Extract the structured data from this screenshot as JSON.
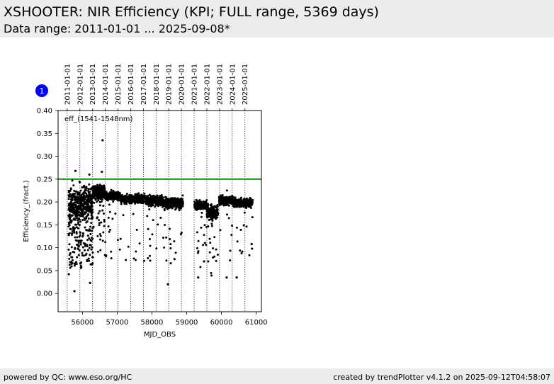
{
  "header": {
    "title": "XSHOOTER: NIR Efficiency (KPI; FULL range, 5369 days)",
    "subtitle": "Data range: 2011-01-01 ... 2025-09-08*"
  },
  "footer": {
    "left": "powered by QC: www.eso.org/HC",
    "right": "created by trendPlotter v4.1.2 on 2025-09-12T04:58:07"
  },
  "marker": {
    "label": "1",
    "color": "#0000ff"
  },
  "chart_data": {
    "type": "scatter",
    "xlabel": "MJD_OBS",
    "ylabel": "Efficiency_(fract.)",
    "annotation": "eff_(1541-1548nm)",
    "xlim": [
      55300,
      61150
    ],
    "ylim": [
      -0.04,
      0.4
    ],
    "xticks": [
      56000,
      57000,
      58000,
      59000,
      60000,
      61000
    ],
    "yticks": [
      0.0,
      0.05,
      0.1,
      0.15,
      0.2,
      0.25,
      0.3,
      0.35,
      0.4
    ],
    "reference_line": {
      "y": 0.25,
      "color": "#008000"
    },
    "point_color": "#000000",
    "top_axis": {
      "labels": [
        "2011-01-01",
        "2012-01-01",
        "2013-01-01",
        "2014-01-01",
        "2015-01-01",
        "2016-01-01",
        "2017-01-01",
        "2018-01-01",
        "2019-01-01",
        "2020-01-01",
        "2021-01-01",
        "2022-01-01",
        "2023-01-01",
        "2024-01-01",
        "2025-01-01"
      ],
      "mjd": [
        55562,
        55927,
        56293,
        56658,
        57023,
        57388,
        57754,
        58119,
        58484,
        58849,
        59215,
        59580,
        59945,
        60310,
        60676
      ]
    },
    "segments": [
      {
        "x": [
          55600,
          56000
        ],
        "center": 0.195,
        "spread": 0.035,
        "outlier_rate": 0.4,
        "n": 320
      },
      {
        "x": [
          56000,
          56300
        ],
        "center": 0.2,
        "spread": 0.03,
        "outlier_rate": 0.35,
        "n": 230
      },
      {
        "x": [
          56300,
          56650
        ],
        "center": 0.222,
        "spread": 0.012,
        "outlier_rate": 0.12,
        "n": 260
      },
      {
        "x": [
          56650,
          57100
        ],
        "center": 0.213,
        "spread": 0.008,
        "outlier_rate": 0.06,
        "n": 230
      },
      {
        "x": [
          57100,
          57800
        ],
        "center": 0.207,
        "spread": 0.008,
        "outlier_rate": 0.05,
        "n": 300
      },
      {
        "x": [
          57800,
          58300
        ],
        "center": 0.203,
        "spread": 0.009,
        "outlier_rate": 0.06,
        "n": 230
      },
      {
        "x": [
          58300,
          58900
        ],
        "center": 0.198,
        "spread": 0.01,
        "outlier_rate": 0.08,
        "n": 260
      },
      {
        "x": [
          59220,
          59580
        ],
        "center": 0.193,
        "spread": 0.009,
        "outlier_rate": 0.08,
        "n": 180
      },
      {
        "x": [
          59580,
          59900
        ],
        "center": 0.178,
        "spread": 0.012,
        "outlier_rate": 0.1,
        "n": 190
      },
      {
        "x": [
          59930,
          60330
        ],
        "center": 0.203,
        "spread": 0.008,
        "outlier_rate": 0.05,
        "n": 210
      },
      {
        "x": [
          60330,
          60900
        ],
        "center": 0.198,
        "spread": 0.008,
        "outlier_rate": 0.05,
        "n": 270
      }
    ],
    "notable_points": [
      {
        "x": 56580,
        "y": 0.335
      },
      {
        "x": 55610,
        "y": 0.042
      },
      {
        "x": 55770,
        "y": 0.005
      },
      {
        "x": 58460,
        "y": 0.02
      },
      {
        "x": 56220,
        "y": 0.023
      },
      {
        "x": 60440,
        "y": 0.035
      },
      {
        "x": 60150,
        "y": 0.035
      },
      {
        "x": 59330,
        "y": 0.035
      },
      {
        "x": 56560,
        "y": 0.266
      },
      {
        "x": 55800,
        "y": 0.268
      },
      {
        "x": 56200,
        "y": 0.26
      },
      {
        "x": 60870,
        "y": 0.108
      },
      {
        "x": 60880,
        "y": 0.098
      },
      {
        "x": 58650,
        "y": 0.075
      },
      {
        "x": 59500,
        "y": 0.07
      }
    ]
  }
}
